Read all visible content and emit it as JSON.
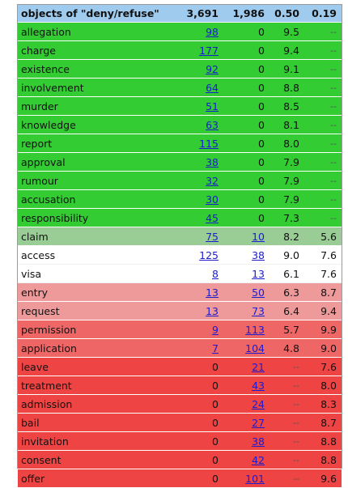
{
  "header": {
    "title": "objects of \"deny/refuse\"",
    "total1": "3,691",
    "total2": "1,986",
    "score1": "0.50",
    "score2": "0.19"
  },
  "colors": {
    "header": "#9ecbee",
    "green": "#33cc33",
    "light_green": "#9acd95",
    "white": "#ffffff",
    "pink": "#ee9a9a",
    "salmon": "#ee6666",
    "red": "#ee4444"
  },
  "rows": [
    {
      "word": "allegation",
      "f1": "98",
      "f2": "0",
      "s1": "9.5",
      "s2": "--",
      "color": "green"
    },
    {
      "word": "charge",
      "f1": "177",
      "f2": "0",
      "s1": "9.4",
      "s2": "--",
      "color": "green"
    },
    {
      "word": "existence",
      "f1": "92",
      "f2": "0",
      "s1": "9.1",
      "s2": "--",
      "color": "green"
    },
    {
      "word": "involvement",
      "f1": "64",
      "f2": "0",
      "s1": "8.8",
      "s2": "--",
      "color": "green"
    },
    {
      "word": "murder",
      "f1": "51",
      "f2": "0",
      "s1": "8.5",
      "s2": "--",
      "color": "green"
    },
    {
      "word": "knowledge",
      "f1": "63",
      "f2": "0",
      "s1": "8.1",
      "s2": "--",
      "color": "green"
    },
    {
      "word": "report",
      "f1": "115",
      "f2": "0",
      "s1": "8.0",
      "s2": "--",
      "color": "green"
    },
    {
      "word": "approval",
      "f1": "38",
      "f2": "0",
      "s1": "7.9",
      "s2": "--",
      "color": "green"
    },
    {
      "word": "rumour",
      "f1": "32",
      "f2": "0",
      "s1": "7.9",
      "s2": "--",
      "color": "green"
    },
    {
      "word": "accusation",
      "f1": "30",
      "f2": "0",
      "s1": "7.9",
      "s2": "--",
      "color": "green"
    },
    {
      "word": "responsibility",
      "f1": "45",
      "f2": "0",
      "s1": "7.3",
      "s2": "--",
      "color": "green"
    },
    {
      "word": "claim",
      "f1": "75",
      "f2": "10",
      "s1": "8.2",
      "s2": "5.6",
      "color": "light_green"
    },
    {
      "word": "access",
      "f1": "125",
      "f2": "38",
      "s1": "9.0",
      "s2": "7.6",
      "color": "white"
    },
    {
      "word": "visa",
      "f1": "8",
      "f2": "13",
      "s1": "6.1",
      "s2": "7.6",
      "color": "white"
    },
    {
      "word": "entry",
      "f1": "13",
      "f2": "50",
      "s1": "6.3",
      "s2": "8.7",
      "color": "pink"
    },
    {
      "word": "request",
      "f1": "13",
      "f2": "73",
      "s1": "6.4",
      "s2": "9.4",
      "color": "pink"
    },
    {
      "word": "permission",
      "f1": "9",
      "f2": "113",
      "s1": "5.7",
      "s2": "9.9",
      "color": "salmon"
    },
    {
      "word": "application",
      "f1": "7",
      "f2": "104",
      "s1": "4.8",
      "s2": "9.0",
      "color": "salmon"
    },
    {
      "word": "leave",
      "f1": "0",
      "f2": "21",
      "s1": "--",
      "s2": "7.6",
      "color": "red"
    },
    {
      "word": "treatment",
      "f1": "0",
      "f2": "43",
      "s1": "--",
      "s2": "8.0",
      "color": "red"
    },
    {
      "word": "admission",
      "f1": "0",
      "f2": "24",
      "s1": "--",
      "s2": "8.3",
      "color": "red"
    },
    {
      "word": "bail",
      "f1": "0",
      "f2": "27",
      "s1": "--",
      "s2": "8.7",
      "color": "red"
    },
    {
      "word": "invitation",
      "f1": "0",
      "f2": "38",
      "s1": "--",
      "s2": "8.8",
      "color": "red"
    },
    {
      "word": "consent",
      "f1": "0",
      "f2": "42",
      "s1": "--",
      "s2": "8.8",
      "color": "red"
    },
    {
      "word": "offer",
      "f1": "0",
      "f2": "101",
      "s1": "--",
      "s2": "9.6",
      "color": "red"
    }
  ]
}
